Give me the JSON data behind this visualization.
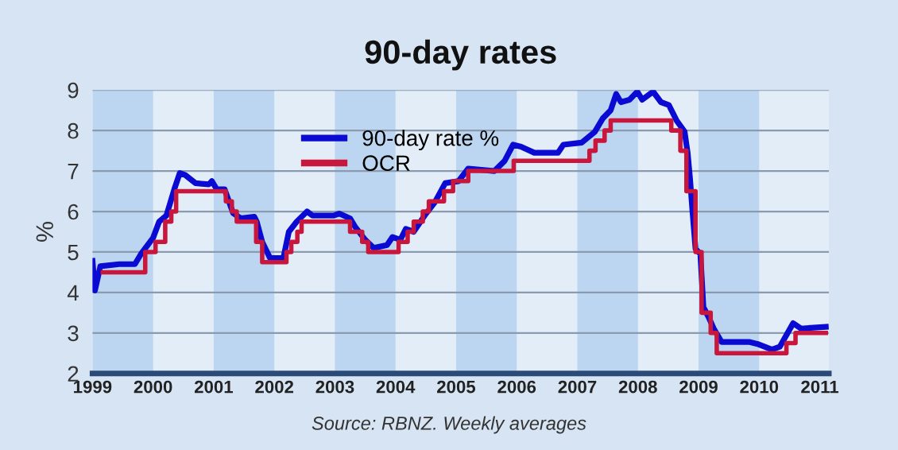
{
  "chart_data": {
    "type": "line",
    "title": "90-day rates",
    "ylabel": "%",
    "annotations": [
      "Source: RBNZ. Weekly averages"
    ],
    "xlim": [
      1999,
      2011.15
    ],
    "ylim": [
      2,
      9
    ],
    "xticks": [
      1999,
      2000,
      2001,
      2002,
      2003,
      2004,
      2005,
      2006,
      2007,
      2008,
      2009,
      2010,
      2011
    ],
    "yticks": [
      2,
      3,
      4,
      5,
      6,
      7,
      8,
      9
    ],
    "grid": "y",
    "legend": "top",
    "line_style": "solid",
    "marker": "none",
    "bands": [
      {
        "axis": "x",
        "from": 1999,
        "to": 2000,
        "color": "#bcd5f0"
      },
      {
        "axis": "x",
        "from": 2001,
        "to": 2002,
        "color": "#bcd5f0"
      },
      {
        "axis": "x",
        "from": 2003,
        "to": 2004,
        "color": "#bcd5f0"
      },
      {
        "axis": "x",
        "from": 2005,
        "to": 2006,
        "color": "#bcd5f0"
      },
      {
        "axis": "x",
        "from": 2007,
        "to": 2008,
        "color": "#bcd5f0"
      },
      {
        "axis": "x",
        "from": 2009,
        "to": 2010,
        "color": "#bcd5f0"
      }
    ],
    "series": [
      {
        "name": "90-day rate %",
        "color": "#0a0ad2",
        "x": [
          1999.0,
          1999.04,
          1999.13,
          1999.44,
          1999.7,
          1999.8,
          2000.0,
          2000.1,
          2000.22,
          2000.35,
          2000.44,
          2000.53,
          2000.7,
          2000.92,
          2000.97,
          2001.05,
          2001.18,
          2001.32,
          2001.45,
          2001.67,
          2001.71,
          2001.8,
          2001.93,
          2002.15,
          2002.24,
          2002.37,
          2002.54,
          2002.63,
          2002.98,
          2003.07,
          2003.25,
          2003.33,
          2003.5,
          2003.64,
          2003.86,
          2003.95,
          2004.08,
          2004.17,
          2004.3,
          2004.48,
          2004.65,
          2004.82,
          2005.04,
          2005.2,
          2005.63,
          2005.8,
          2005.94,
          2006.07,
          2006.29,
          2006.68,
          2006.77,
          2007.07,
          2007.29,
          2007.42,
          2007.55,
          2007.64,
          2007.72,
          2007.86,
          2007.99,
          2008.07,
          2008.25,
          2008.38,
          2008.51,
          2008.64,
          2008.77,
          2008.82,
          2008.86,
          2008.9,
          2008.95,
          2009.03,
          2009.08,
          2009.17,
          2009.25,
          2009.38,
          2009.65,
          2009.83,
          2009.99,
          2010.21,
          2010.34,
          2010.56,
          2010.69,
          2011.1
        ],
        "values": [
          4.78,
          4.05,
          4.65,
          4.7,
          4.7,
          4.95,
          5.35,
          5.75,
          5.9,
          6.55,
          6.95,
          6.9,
          6.7,
          6.67,
          6.75,
          6.55,
          6.55,
          5.96,
          5.83,
          5.87,
          5.75,
          5.25,
          4.85,
          4.85,
          5.5,
          5.75,
          6.0,
          5.9,
          5.9,
          5.95,
          5.83,
          5.63,
          5.3,
          5.1,
          5.17,
          5.37,
          5.3,
          5.57,
          5.5,
          5.9,
          6.23,
          6.7,
          6.75,
          7.06,
          7.0,
          7.25,
          7.65,
          7.6,
          7.45,
          7.45,
          7.65,
          7.7,
          7.97,
          8.3,
          8.5,
          8.9,
          8.7,
          8.76,
          8.96,
          8.76,
          8.96,
          8.7,
          8.63,
          8.24,
          7.97,
          7.45,
          6.8,
          6.0,
          5.08,
          4.95,
          3.64,
          3.38,
          3.11,
          2.78,
          2.78,
          2.78,
          2.72,
          2.59,
          2.66,
          3.24,
          3.11,
          3.15
        ]
      },
      {
        "name": "OCR",
        "color": "#c8163c",
        "type": "step",
        "x": [
          1999.17,
          1999.87,
          2000.04,
          2000.2,
          2000.3,
          2000.38,
          2001.2,
          2001.3,
          2001.38,
          2001.7,
          2001.8,
          2002.2,
          2002.28,
          2002.38,
          2002.45,
          2003.25,
          2003.45,
          2003.55,
          2004.05,
          2004.2,
          2004.3,
          2004.45,
          2004.55,
          2004.8,
          2004.95,
          2005.2,
          2005.95,
          2007.2,
          2007.3,
          2007.45,
          2007.55,
          2008.55,
          2008.7,
          2008.8,
          2008.95,
          2009.05,
          2009.2,
          2009.3,
          2010.45,
          2010.6,
          2011.1
        ],
        "values": [
          4.5,
          5.0,
          5.25,
          5.75,
          6.0,
          6.5,
          6.25,
          6.0,
          5.75,
          5.25,
          4.75,
          5.0,
          5.25,
          5.5,
          5.75,
          5.5,
          5.25,
          5.0,
          5.25,
          5.5,
          5.75,
          6.0,
          6.25,
          6.5,
          6.75,
          7.0,
          7.25,
          7.5,
          7.75,
          8.0,
          8.25,
          8.0,
          7.5,
          6.5,
          5.0,
          3.5,
          3.0,
          2.5,
          2.75,
          3.0,
          3.0
        ]
      }
    ]
  }
}
